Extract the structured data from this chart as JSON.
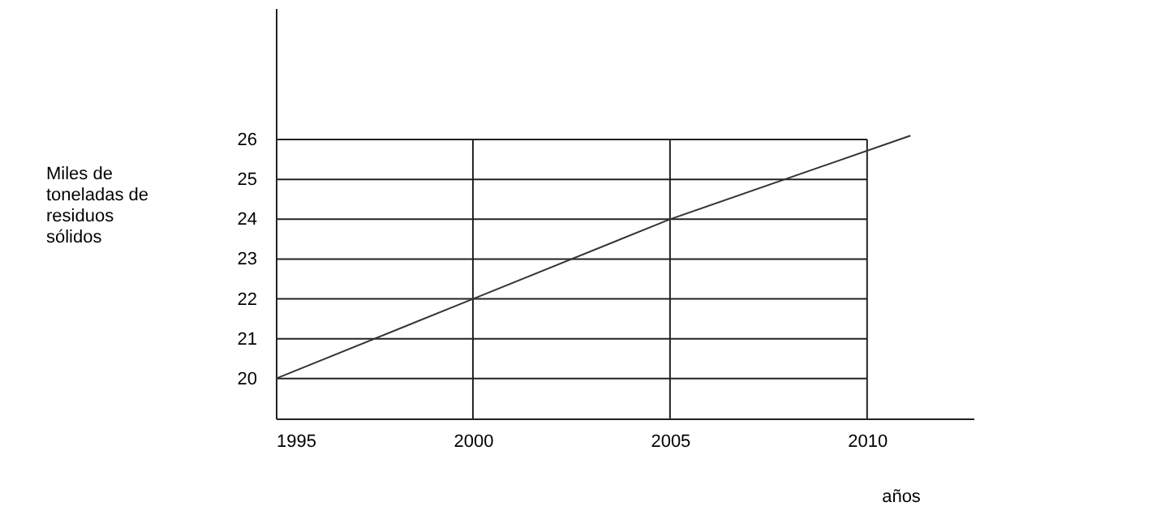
{
  "chart_data": {
    "type": "line",
    "xlabel": "años",
    "ylabel": "Miles de toneladas de residuos sólidos",
    "x": [
      1995,
      2000,
      2005,
      2011.1
    ],
    "series": [
      {
        "color": "#333333",
        "values": [
          20,
          22,
          24,
          26.1
        ]
      }
    ],
    "xlim": [
      1995,
      2012.7
    ],
    "xticks": [
      1995,
      2000,
      2005,
      2010
    ],
    "ylim": [
      19,
      29.3
    ],
    "yticks": [
      20,
      21,
      22,
      23,
      24,
      25,
      26
    ],
    "ref_lines": [
      {
        "axis": "x",
        "value": 2000,
        "color": "#222222"
      },
      {
        "axis": "x",
        "value": 2005,
        "color": "#222222"
      },
      {
        "axis": "x",
        "value": 2010,
        "color": "#222222"
      }
    ],
    "grid": "y",
    "marker": "none",
    "line_style": "solid"
  }
}
